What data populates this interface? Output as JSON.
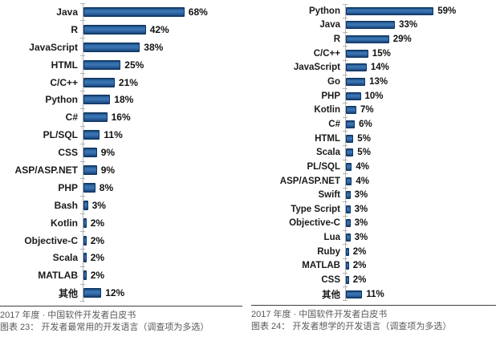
{
  "style": {
    "bar_fill_main": "#2a5f9b",
    "bar_fill_highlight": "#3d77b4",
    "bar_border": "#0f3460",
    "axis_color": "#b3b3b3",
    "label_color": "#1a1a1a",
    "footer_text_color": "#595959",
    "footer_rule_color": "#404040",
    "background": "#ffffff"
  },
  "chart_data": [
    {
      "type": "bar",
      "orientation": "horizontal",
      "title": "",
      "unit": "%",
      "xlim": [
        0,
        75
      ],
      "grid": false,
      "legend": false,
      "categories": [
        "Java",
        "R",
        "JavaScript",
        "HTML",
        "C/C++",
        "Python",
        "C#",
        "PL/SQL",
        "CSS",
        "ASP/ASP.NET",
        "PHP",
        "Bash",
        "Kotlin",
        "Objective-C",
        "Scala",
        "MATLAB",
        "其他"
      ],
      "values": [
        68,
        42,
        38,
        25,
        21,
        18,
        16,
        11,
        9,
        9,
        8,
        3,
        2,
        2,
        2,
        2,
        12
      ],
      "footer_line1": "2017 年度 · 中国软件开发者白皮书",
      "footer_line2": "图表 23： 开发者最常用的开发语言（调查项为多选）"
    },
    {
      "type": "bar",
      "orientation": "horizontal",
      "title": "",
      "unit": "%",
      "xlim": [
        0,
        65
      ],
      "grid": false,
      "legend": false,
      "categories": [
        "Python",
        "Java",
        "R",
        "C/C++",
        "JavaScript",
        "Go",
        "PHP",
        "Kotlin",
        "C#",
        "HTML",
        "Scala",
        "PL/SQL",
        "ASP/ASP.NET",
        "Swift",
        "Type Script",
        "Objective-C",
        "Lua",
        "Ruby",
        "MATLAB",
        "CSS",
        "其他"
      ],
      "values": [
        59,
        33,
        29,
        15,
        14,
        13,
        10,
        7,
        6,
        5,
        5,
        4,
        4,
        3,
        3,
        3,
        3,
        2,
        2,
        2,
        11
      ],
      "footer_line1": "2017 年度 · 中国软件开发者白皮书",
      "footer_line2": "图表 24： 开发者想学的开发语言（调查项为多选）"
    }
  ]
}
